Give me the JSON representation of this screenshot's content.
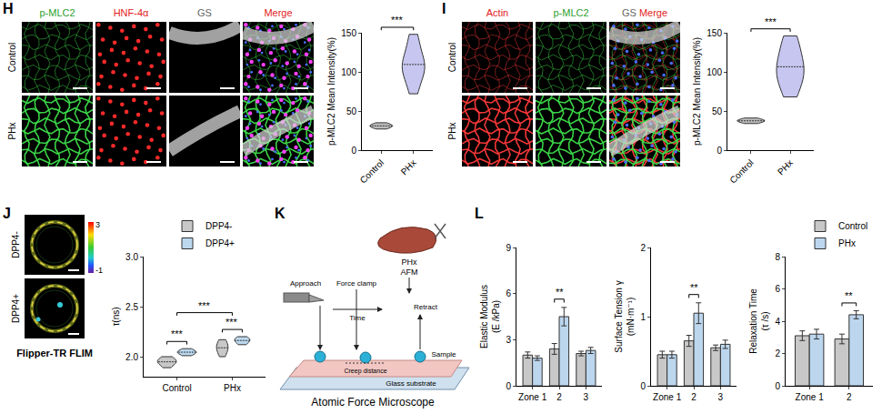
{
  "figures": [
    {
      "panel": "H",
      "columns": [
        {
          "text": "p-MLC2",
          "color": "#2ca02c"
        },
        {
          "text": "HNF-4α",
          "color": "#e31a1c"
        },
        {
          "text": "GS",
          "color": "#666666"
        },
        {
          "text": "Merge",
          "color": "#e31a1c"
        }
      ],
      "rows": [
        "Control",
        "PHx"
      ]
    },
    {
      "panel": "I",
      "columns": [
        {
          "text": "Actin",
          "color": "#e31a1c"
        },
        {
          "text": "p-MLC2",
          "color": "#2ca02c"
        },
        {
          "text": [
            "GS",
            "Merge"
          ],
          "colors": [
            "#666666",
            "#e31a1c"
          ]
        }
      ],
      "rows": [
        "Control",
        "PHx"
      ]
    },
    {
      "panel": "J",
      "rows": [
        "DPP4-",
        "DPP4+"
      ],
      "colorbar": {
        "ticks": [
          3,
          -1
        ]
      },
      "caption": "Flipper-TR FLIM"
    }
  ],
  "diagram": {
    "panel": "K",
    "title": "Atomic Force Microscope",
    "tissue": "PHx",
    "instrument": "AFM",
    "steps": [
      "Approach",
      "Force clamp",
      "Retract"
    ],
    "time": "Time",
    "creep": "Creep distance",
    "sample": "Sample",
    "substrate": "Glass substrate"
  },
  "chart_data": [
    {
      "panel": "H",
      "type": "violin",
      "categories": [
        "Control",
        "PHx"
      ],
      "values": [
        [
          27,
          29,
          30,
          31,
          32,
          33,
          35
        ],
        [
          72,
          84,
          94,
          100,
          104,
          108,
          112,
          118,
          126,
          138,
          148
        ]
      ],
      "colors": [
        "#bdbdbd",
        "#c6c6f0"
      ],
      "ylabel": "p-MLC2 Mean Intensity(%)",
      "ylim": [
        0,
        150
      ],
      "yticks": [
        0,
        50,
        100,
        150
      ],
      "annotations": [
        {
          "text": "***",
          "from": "Control",
          "to": "PHx"
        }
      ]
    },
    {
      "panel": "I",
      "type": "violin",
      "categories": [
        "Control",
        "PHx"
      ],
      "values": [
        [
          34,
          36,
          37,
          38,
          39,
          41
        ],
        [
          68,
          82,
          92,
          98,
          104,
          112,
          122,
          135,
          146
        ]
      ],
      "colors": [
        "#bdbdbd",
        "#c6c6f0"
      ],
      "ylabel": "p-MLC2 Mean Intensity(%)",
      "ylim": [
        0,
        150
      ],
      "yticks": [
        0,
        50,
        100,
        150
      ],
      "annotations": [
        {
          "text": "***",
          "from": "Control",
          "to": "PHx"
        }
      ]
    },
    {
      "panel": "J",
      "type": "violin",
      "categories": [
        "Control",
        "PHx"
      ],
      "series": [
        {
          "name": "DPP4-",
          "color": "#c8c8c8",
          "values": [
            [
              1.89,
              1.92,
              1.94,
              1.95,
              1.96,
              1.98,
              2.0
            ],
            [
              2.0,
              2.04,
              2.07,
              2.09,
              2.11,
              2.14,
              2.17
            ]
          ]
        },
        {
          "name": "DPP4+",
          "color": "#bcd8ee",
          "values": [
            [
              2.01,
              2.03,
              2.04,
              2.05,
              2.06,
              2.08
            ],
            [
              2.12,
              2.14,
              2.16,
              2.17,
              2.18,
              2.2
            ]
          ]
        }
      ],
      "ylabel": "τ(ns)",
      "ylim": [
        1.8,
        3.0
      ],
      "yticks": [
        {
          "value": 2,
          "label": "2.0"
        },
        2.5,
        {
          "value": 3,
          "label": "3.0"
        }
      ],
      "legend": "top",
      "annotations": [
        {
          "text": "***",
          "category": "Control"
        },
        {
          "text": "***",
          "category": "PHx"
        },
        {
          "text": "***",
          "from": "Control",
          "to": "PHx"
        }
      ]
    },
    {
      "panel": "L",
      "type": "bar",
      "categories": [
        "Zone 1",
        "2",
        "3"
      ],
      "series": [
        {
          "name": "Control",
          "color": "#c8c8c8",
          "values": [
            2.0,
            2.4,
            2.1
          ],
          "errors": [
            0.2,
            0.35,
            0.15
          ]
        },
        {
          "name": "PHx",
          "color": "#bcd6ee",
          "values": [
            1.8,
            4.5,
            2.3
          ],
          "errors": [
            0.15,
            0.6,
            0.2
          ]
        }
      ],
      "ylabel": "Elastic Modulus (E /kPa)",
      "ylim": [
        0,
        9
      ],
      "yticks": [
        0,
        3,
        6,
        9
      ],
      "annotations": [
        {
          "text": "**",
          "category": "2"
        }
      ]
    },
    {
      "type": "bar",
      "categories": [
        "Zone 1",
        "2",
        "3"
      ],
      "series": [
        {
          "name": "Control",
          "color": "#c8c8c8",
          "values": [
            0.45,
            0.65,
            0.55
          ],
          "errors": [
            0.05,
            0.08,
            0.04
          ]
        },
        {
          "name": "PHx",
          "color": "#bcd6ee",
          "values": [
            0.45,
            1.05,
            0.6
          ],
          "errors": [
            0.05,
            0.15,
            0.06
          ]
        }
      ],
      "ylabel": "Surface Tension γ (mN·m⁻¹)",
      "ylim": [
        0,
        2
      ],
      "yticks": [
        0,
        1,
        2
      ],
      "annotations": [
        {
          "text": "**",
          "category": "2"
        }
      ]
    },
    {
      "type": "bar",
      "categories": [
        "Zone 1",
        "2"
      ],
      "series": [
        {
          "name": "Control",
          "color": "#c8c8c8",
          "values": [
            3.1,
            2.9
          ],
          "errors": [
            0.3,
            0.3
          ]
        },
        {
          "name": "PHx",
          "color": "#bcd6ee",
          "values": [
            3.2,
            4.4
          ],
          "errors": [
            0.3,
            0.25
          ]
        }
      ],
      "ylabel": "Relaxation Time (τ /s)",
      "ylim": [
        0,
        8
      ],
      "yticks": [
        0,
        2,
        4,
        6,
        8
      ],
      "legend": "top right",
      "annotations": [
        {
          "text": "**",
          "category": "2"
        }
      ]
    }
  ]
}
